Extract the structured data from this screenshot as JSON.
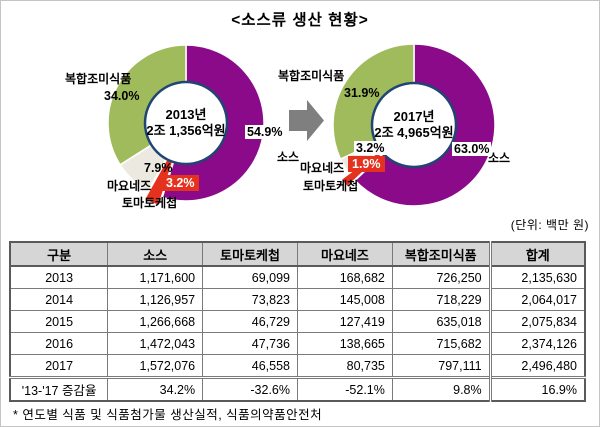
{
  "title": "<소스류 생산 현황>",
  "unit_label": "(단위: 백만 원)",
  "footnote": "* 연도별 식품 및 식품첨가물 생산실적, 식품의약품안전처",
  "colors": {
    "sauce": "#8A0A8A",
    "ketchup": "#E4321E",
    "mayo": "#ECEAE0",
    "seasoning": "#A0BB5C",
    "ring": "#1F4573",
    "arrow": "#7F7F7F",
    "header_bg": "#D6D6D6"
  },
  "chart_data": [
    {
      "type": "pie",
      "title": "2013년 소스류 생산 구성비",
      "center_line1": "2013년",
      "center_line2": "2조 1,356억원",
      "categories": [
        "소스",
        "토마토케첩",
        "마요네즈",
        "복합조미식품"
      ],
      "values": [
        54.9,
        3.2,
        7.9,
        34.0
      ],
      "exploded_slice": "토마토케첩",
      "cat": {
        "sauce": "소스",
        "ketchup": "토마토케첩",
        "mayo": "마요네즈",
        "seasoning": "복합조미식품"
      },
      "pct": {
        "sauce": "54.9%",
        "ketchup": "3.2%",
        "mayo": "7.9%",
        "seasoning": "34.0%"
      }
    },
    {
      "type": "pie",
      "title": "2017년 소스류 생산 구성비",
      "center_line1": "2017년",
      "center_line2": "2조 4,965억원",
      "categories": [
        "소스",
        "토마토케첩",
        "마요네즈",
        "복합조미식품"
      ],
      "values": [
        63.0,
        1.9,
        3.2,
        31.9
      ],
      "exploded_slice": "토마토케첩",
      "cat": {
        "sauce": "소스",
        "ketchup": "토마토케첩",
        "mayo": "마요네즈",
        "seasoning": "복합조미식품"
      },
      "pct": {
        "sauce": "63.0%",
        "ketchup": "1.9%",
        "mayo": "3.2%",
        "seasoning": "31.9%"
      }
    }
  ],
  "table": {
    "headers": [
      "구분",
      "소스",
      "토마토케첩",
      "마요네즈",
      "복합조미식품",
      "합계"
    ],
    "rows": [
      [
        "2013",
        "1,171,600",
        "69,099",
        "168,682",
        "726,250",
        "2,135,630"
      ],
      [
        "2014",
        "1,126,957",
        "73,823",
        "145,008",
        "718,229",
        "2,064,017"
      ],
      [
        "2015",
        "1,266,668",
        "46,729",
        "127,419",
        "635,018",
        "2,075,834"
      ],
      [
        "2016",
        "1,472,043",
        "47,736",
        "138,665",
        "715,682",
        "2,374,126"
      ],
      [
        "2017",
        "1,572,076",
        "46,558",
        "80,735",
        "797,111",
        "2,496,480"
      ],
      [
        "'13-'17 증감율",
        "34.2%",
        "-32.6%",
        "-52.1%",
        "9.8%",
        "16.9%"
      ]
    ]
  }
}
